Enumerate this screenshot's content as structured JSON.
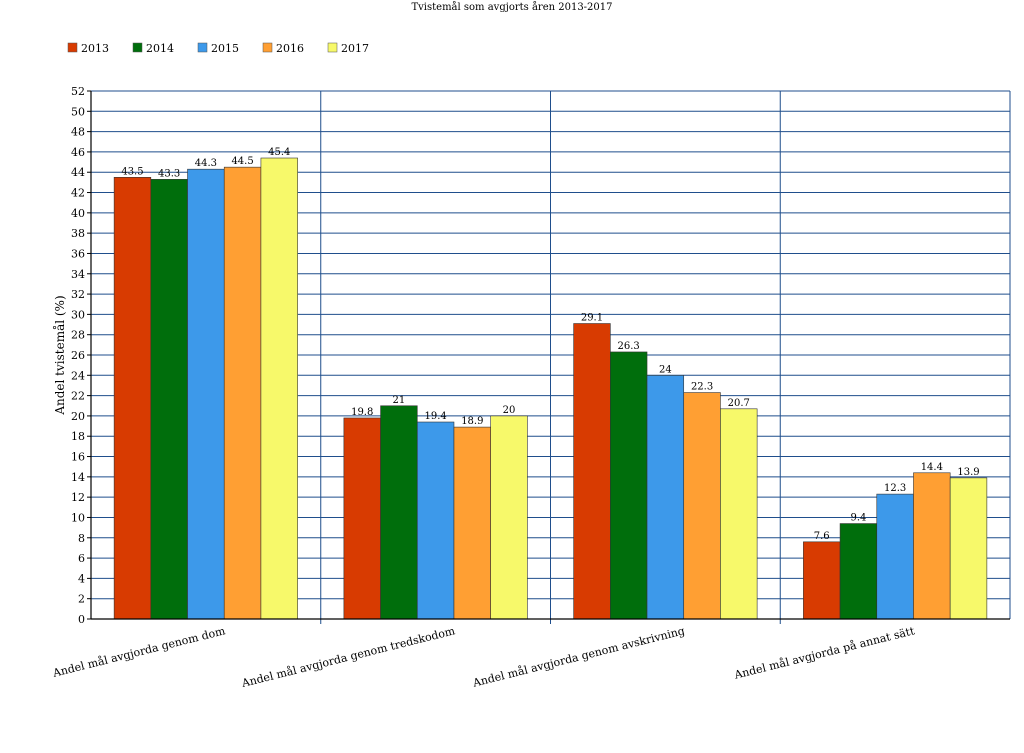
{
  "chart_data": {
    "type": "bar",
    "title": "Tvistemål som avgjorts åren 2013-2017",
    "ylabel": "Andel tvistemål (%)",
    "xlabel": "",
    "ylim": [
      0,
      52
    ],
    "ytick_step": 2,
    "grid": true,
    "legend_placement": "top-left",
    "categories": [
      "Andel mål avgjorda genom dom",
      "Andel mål avgjorda genom tredskodom",
      "Andel mål avgjorda genom avskrivning",
      "Andel mål avgjorda på annat sätt"
    ],
    "series": [
      {
        "name": "2013",
        "color": "#d83b01",
        "values": [
          43.5,
          19.8,
          29.1,
          7.6
        ]
      },
      {
        "name": "2014",
        "color": "#006e0c",
        "values": [
          43.3,
          21,
          26.3,
          9.4
        ]
      },
      {
        "name": "2015",
        "color": "#3d99ea",
        "values": [
          44.3,
          19.4,
          24,
          12.3
        ]
      },
      {
        "name": "2016",
        "color": "#ff9f33",
        "values": [
          44.5,
          18.9,
          22.3,
          14.4
        ]
      },
      {
        "name": "2017",
        "color": "#f7f96a",
        "values": [
          45.4,
          20,
          20.7,
          13.9
        ]
      }
    ]
  }
}
